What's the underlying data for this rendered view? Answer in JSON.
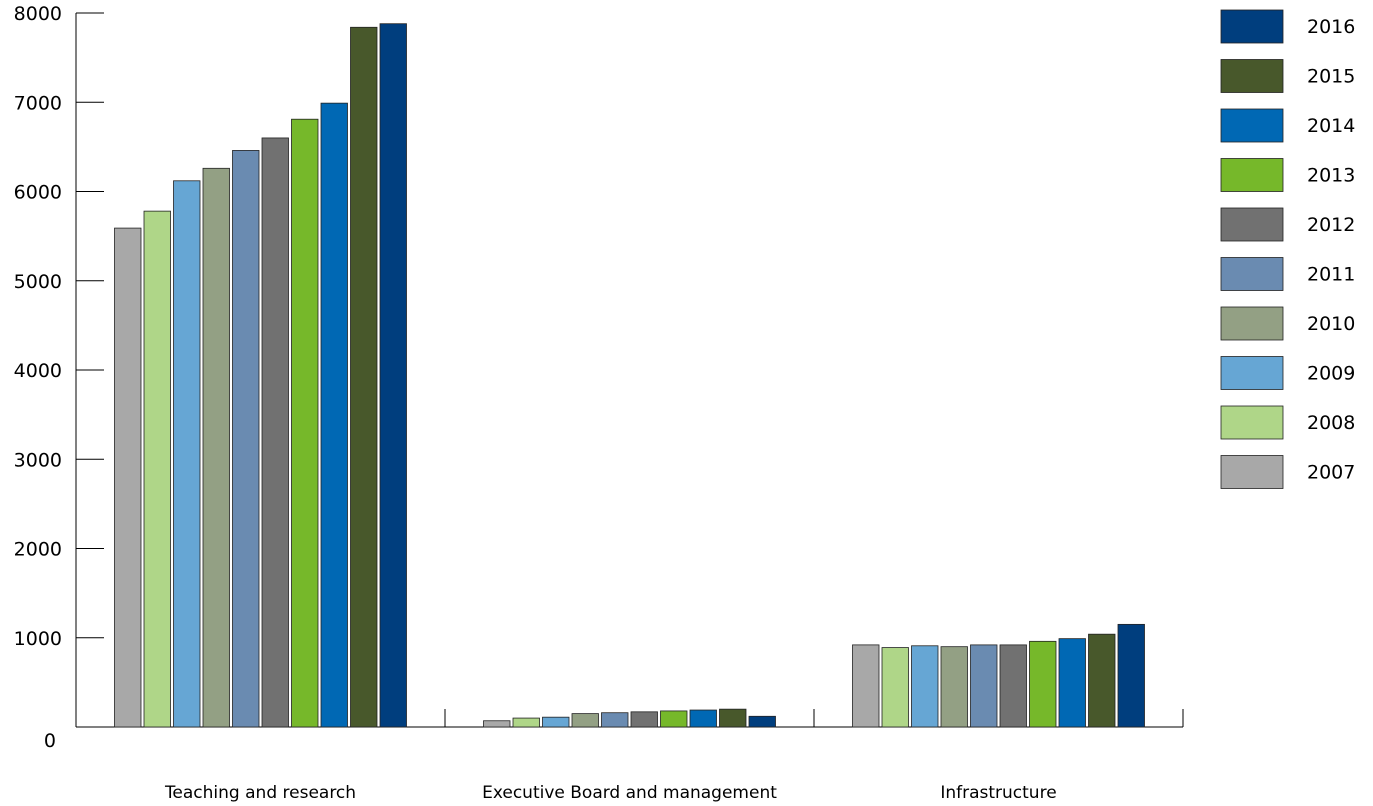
{
  "chart_data": {
    "type": "bar",
    "title": "",
    "xlabel": "",
    "ylabel": "",
    "ylim": [
      0,
      8000
    ],
    "yticks": [
      "0",
      "1000",
      "2000",
      "3000",
      "4000",
      "5000",
      "6000",
      "7000",
      "8000"
    ],
    "grid": false,
    "legend_position": "right",
    "categories": [
      "Teaching and research",
      "Executive Board and management",
      "Infrastructure"
    ],
    "series": [
      {
        "name": "2007",
        "color": "#a8a8a8",
        "values": [
          5590,
          70,
          920
        ]
      },
      {
        "name": "2008",
        "color": "#afd688",
        "values": [
          5780,
          100,
          890
        ]
      },
      {
        "name": "2009",
        "color": "#66a6d4",
        "values": [
          6120,
          110,
          910
        ]
      },
      {
        "name": "2010",
        "color": "#93a084",
        "values": [
          6260,
          150,
          900
        ]
      },
      {
        "name": "2011",
        "color": "#6a8bb1",
        "values": [
          6460,
          160,
          920
        ]
      },
      {
        "name": "2012",
        "color": "#717171",
        "values": [
          6600,
          170,
          920
        ]
      },
      {
        "name": "2013",
        "color": "#76b82a",
        "values": [
          6810,
          180,
          960
        ]
      },
      {
        "name": "2014",
        "color": "#0068b4",
        "values": [
          6990,
          190,
          990
        ]
      },
      {
        "name": "2015",
        "color": "#48582b",
        "values": [
          7840,
          200,
          1040
        ]
      },
      {
        "name": "2016",
        "color": "#003e7e",
        "values": [
          7880,
          120,
          1150
        ]
      }
    ]
  }
}
